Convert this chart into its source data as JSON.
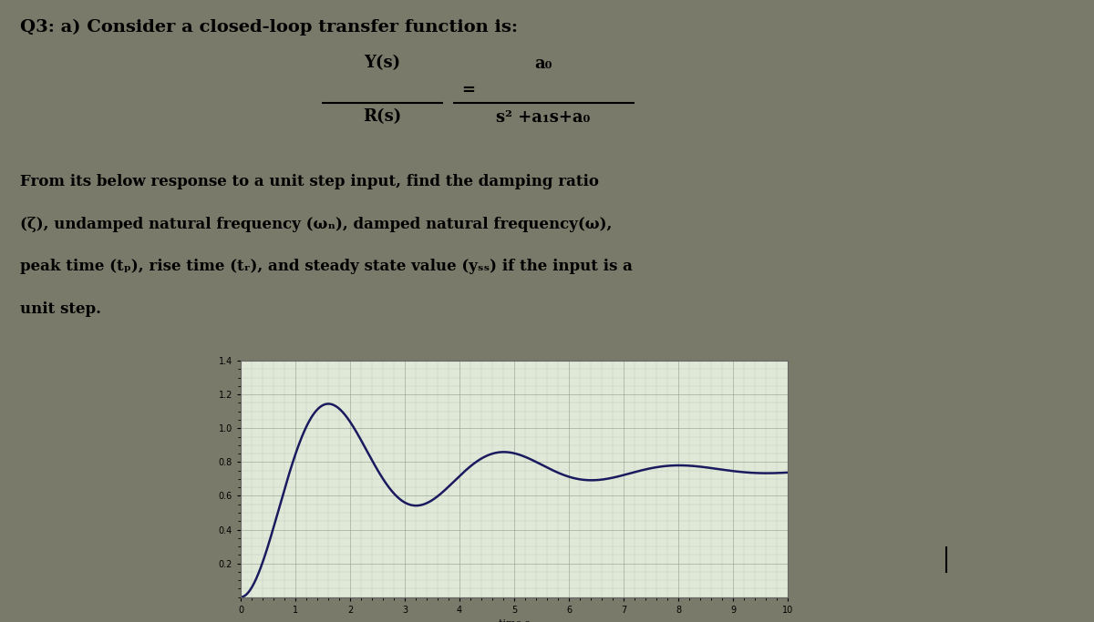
{
  "background_color": "#7a7a6a",
  "page_color": "#c8c8b0",
  "title_text": "Q3: a) Consider a closed-loop transfer function is:",
  "title_fontsize": 14,
  "tf_y_num": "Y(s)",
  "tf_y_den": "R(s)",
  "tf_eq": "=",
  "tf_num": "a₀",
  "tf_den": "s² +a₁s+a₀",
  "body_line1": "From its below response to a unit step input, find the damping ratio",
  "body_line2": "(ζ), undamped natural frequency (ωₙ), damped natural frequency(ω),",
  "body_line3": "peak time (tₚ), rise time (tᵣ), and steady state value (yₛₛ) if the input is a",
  "body_line4": "unit step.",
  "body_fontsize": 12,
  "plot_xlim": [
    0,
    10
  ],
  "plot_ylim": [
    0,
    1.4
  ],
  "plot_yticks": [
    0.2,
    0.4,
    0.6,
    0.8,
    1.0,
    1.2,
    1.4
  ],
  "plot_xticks": [
    0,
    1,
    2,
    3,
    4,
    5,
    6,
    7,
    8,
    9,
    10
  ],
  "xlabel": "time s",
  "grid_color": "#9aaa9a",
  "minor_grid_color": "#b0bdb0",
  "line_color": "#1a1a5e",
  "line_width": 1.8,
  "plot_bg": "#e0e8d8",
  "wn": 2.0,
  "zeta": 0.2,
  "dc_gain": 0.75,
  "tick_fontsize": 7,
  "xlabel_fontsize": 8
}
